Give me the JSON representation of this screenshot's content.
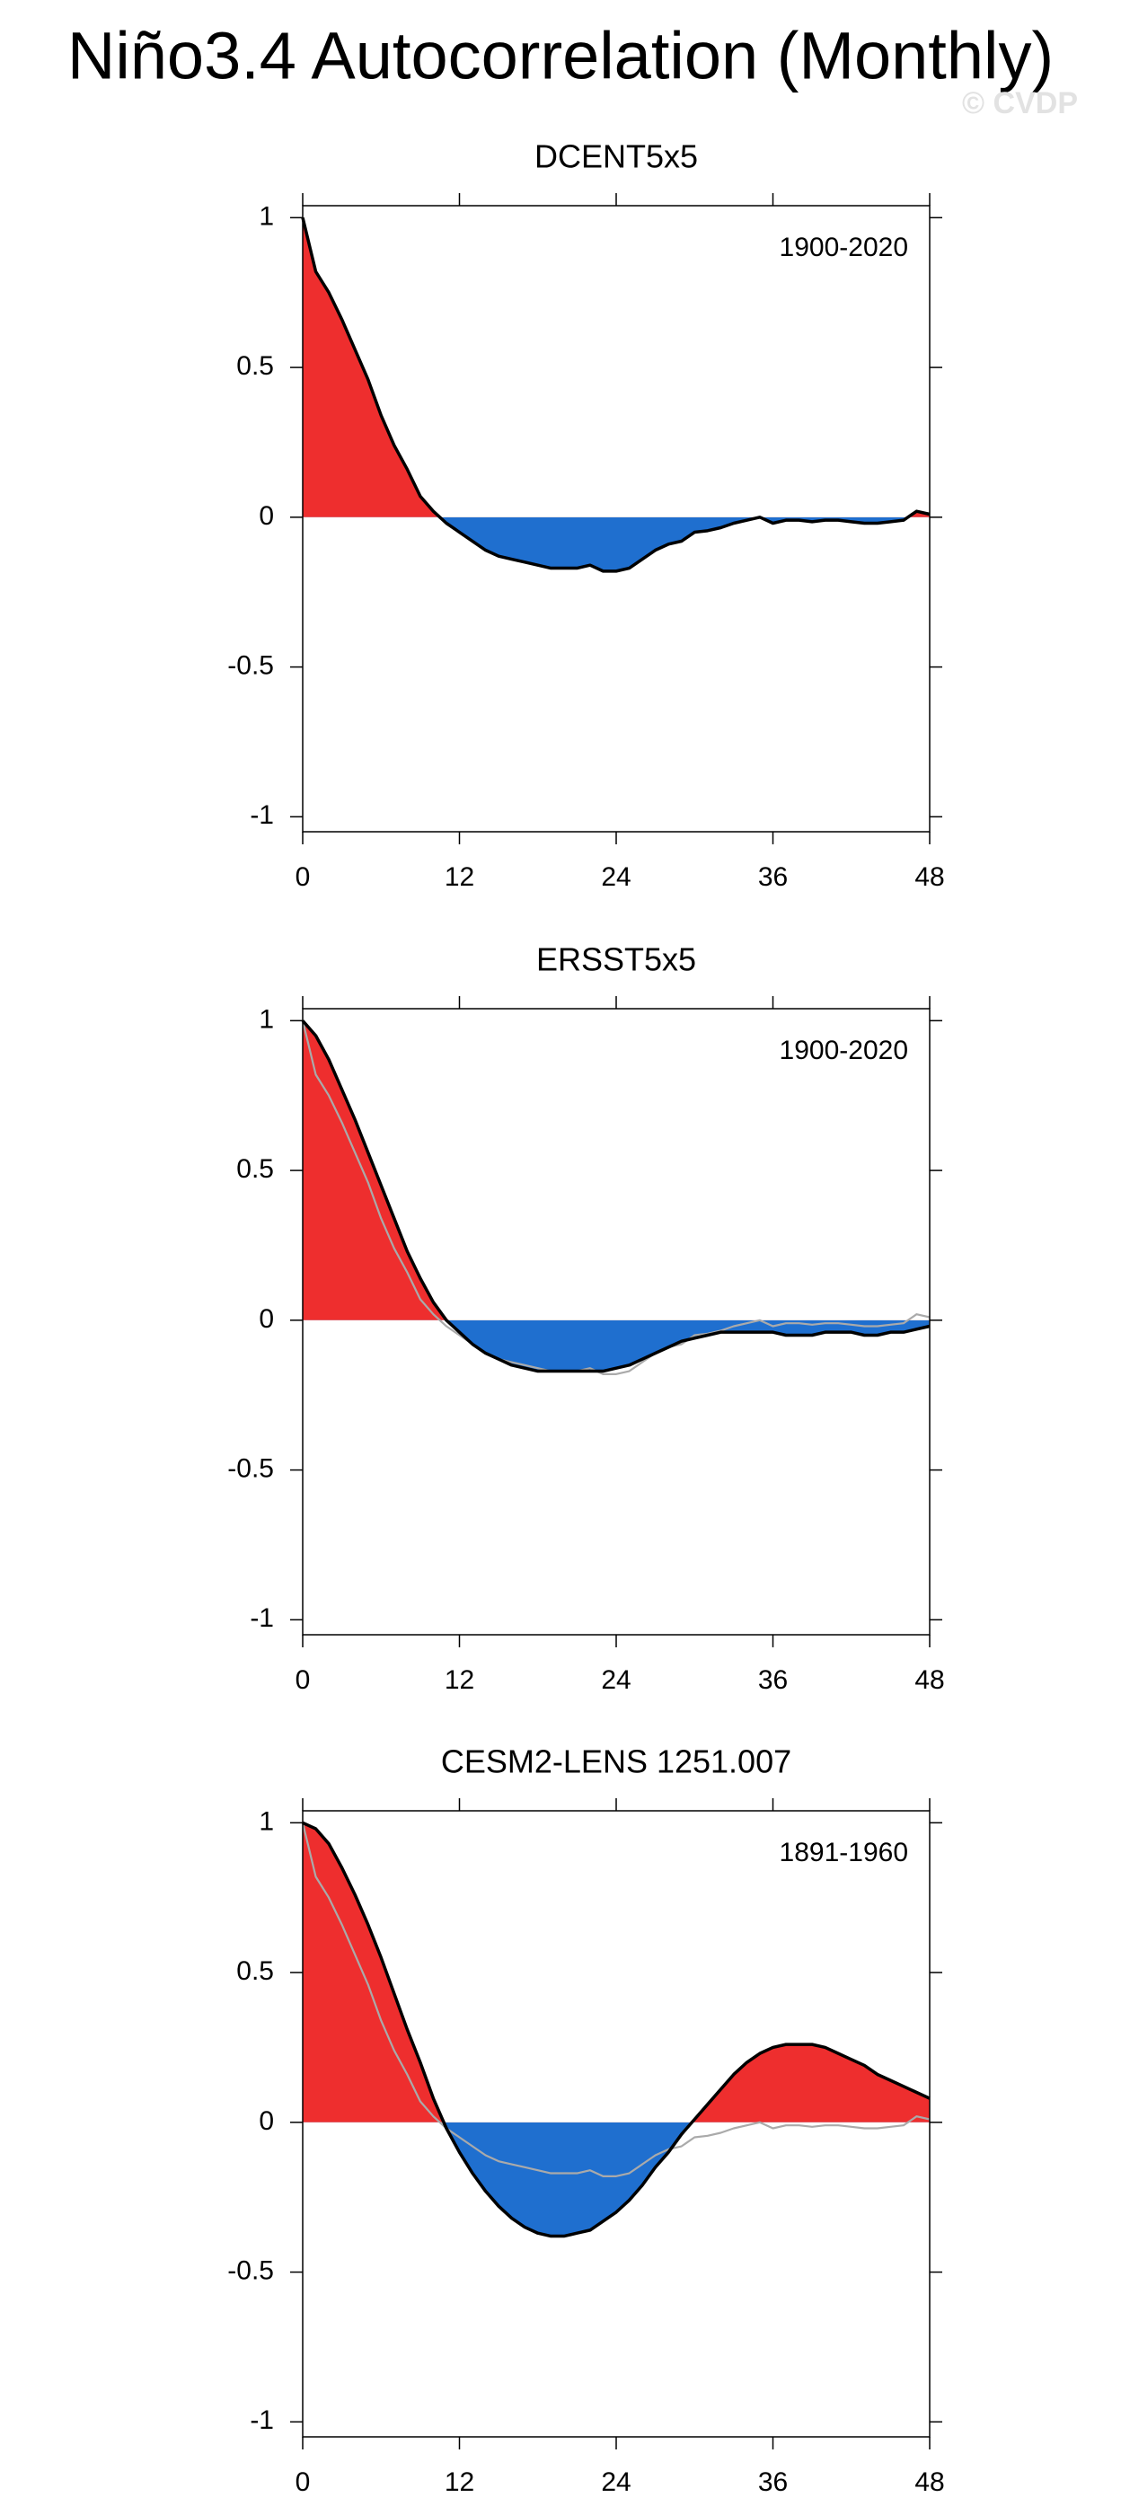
{
  "title": "Niño3.4 Autocorrelation (Monthly)",
  "watermark": "© CVDP",
  "chart_data": [
    {
      "type": "area",
      "title": "DCENT5x5",
      "annotation": "1900-2020",
      "x": [
        0,
        1,
        2,
        3,
        4,
        5,
        6,
        7,
        8,
        9,
        10,
        11,
        12,
        13,
        14,
        15,
        16,
        17,
        18,
        19,
        20,
        21,
        22,
        23,
        24,
        25,
        26,
        27,
        28,
        29,
        30,
        31,
        32,
        33,
        34,
        35,
        36,
        37,
        38,
        39,
        40,
        41,
        42,
        43,
        44,
        45,
        46,
        47,
        48
      ],
      "xlim": [
        0,
        48
      ],
      "xticks": [
        0,
        12,
        24,
        36,
        48
      ],
      "ylim": [
        -1.05,
        1.04
      ],
      "yticks": [
        1,
        0.5,
        0,
        -0.5,
        -1
      ],
      "positive_color": "#ee2e2e",
      "negative_color": "#1f6fcf",
      "series": [
        {
          "color": "#000000",
          "fill": true,
          "values": [
            1,
            0.82,
            0.75,
            0.66,
            0.56,
            0.46,
            0.34,
            0.24,
            0.16,
            0.07,
            0.02,
            -0.02,
            -0.05,
            -0.08,
            -0.11,
            -0.13,
            -0.14,
            -0.15,
            -0.16,
            -0.17,
            -0.17,
            -0.17,
            -0.16,
            -0.18,
            -0.18,
            -0.17,
            -0.14,
            -0.11,
            -0.09,
            -0.08,
            -0.05,
            -0.045,
            -0.035,
            -0.02,
            -0.01,
            0,
            -0.02,
            -0.01,
            -0.01,
            -0.015,
            -0.01,
            -0.01,
            -0.015,
            -0.02,
            -0.02,
            -0.015,
            -0.01,
            0.02,
            0.01
          ]
        }
      ]
    },
    {
      "type": "area",
      "title": "ERSST5x5",
      "annotation": "1900-2020",
      "x": [
        0,
        1,
        2,
        3,
        4,
        5,
        6,
        7,
        8,
        9,
        10,
        11,
        12,
        13,
        14,
        15,
        16,
        17,
        18,
        19,
        20,
        21,
        22,
        23,
        24,
        25,
        26,
        27,
        28,
        29,
        30,
        31,
        32,
        33,
        34,
        35,
        36,
        37,
        38,
        39,
        40,
        41,
        42,
        43,
        44,
        45,
        46,
        47,
        48
      ],
      "xlim": [
        0,
        48
      ],
      "xticks": [
        0,
        12,
        24,
        36,
        48
      ],
      "ylim": [
        -1.05,
        1.04
      ],
      "yticks": [
        1,
        0.5,
        0,
        -0.5,
        -1
      ],
      "positive_color": "#ee2e2e",
      "negative_color": "#1f6fcf",
      "series": [
        {
          "color": "#000000",
          "fill": true,
          "values": [
            1,
            0.95,
            0.87,
            0.77,
            0.67,
            0.56,
            0.45,
            0.34,
            0.23,
            0.14,
            0.06,
            0,
            -0.04,
            -0.08,
            -0.11,
            -0.13,
            -0.15,
            -0.16,
            -0.17,
            -0.17,
            -0.17,
            -0.17,
            -0.17,
            -0.17,
            -0.16,
            -0.15,
            -0.13,
            -0.11,
            -0.09,
            -0.07,
            -0.06,
            -0.05,
            -0.04,
            -0.04,
            -0.04,
            -0.04,
            -0.04,
            -0.05,
            -0.05,
            -0.05,
            -0.04,
            -0.04,
            -0.04,
            -0.05,
            -0.05,
            -0.04,
            -0.04,
            -0.03,
            -0.02
          ]
        },
        {
          "color": "#aaaaaa",
          "fill": false,
          "values": [
            1,
            0.82,
            0.75,
            0.66,
            0.56,
            0.46,
            0.34,
            0.24,
            0.16,
            0.07,
            0.02,
            -0.02,
            -0.05,
            -0.08,
            -0.11,
            -0.13,
            -0.14,
            -0.15,
            -0.16,
            -0.17,
            -0.17,
            -0.17,
            -0.16,
            -0.18,
            -0.18,
            -0.17,
            -0.14,
            -0.11,
            -0.09,
            -0.08,
            -0.05,
            -0.045,
            -0.035,
            -0.02,
            -0.01,
            0,
            -0.02,
            -0.01,
            -0.01,
            -0.015,
            -0.01,
            -0.01,
            -0.015,
            -0.02,
            -0.02,
            -0.015,
            -0.01,
            0.02,
            0.01
          ]
        }
      ]
    },
    {
      "type": "area",
      "title": "CESM2-LENS 1251.007",
      "annotation": "1891-1960",
      "x": [
        0,
        1,
        2,
        3,
        4,
        5,
        6,
        7,
        8,
        9,
        10,
        11,
        12,
        13,
        14,
        15,
        16,
        17,
        18,
        19,
        20,
        21,
        22,
        23,
        24,
        25,
        26,
        27,
        28,
        29,
        30,
        31,
        32,
        33,
        34,
        35,
        36,
        37,
        38,
        39,
        40,
        41,
        42,
        43,
        44,
        45,
        46,
        47,
        48
      ],
      "xlim": [
        0,
        48
      ],
      "xticks": [
        0,
        12,
        24,
        36,
        48
      ],
      "ylim": [
        -1.05,
        1.04
      ],
      "yticks": [
        1,
        0.5,
        0,
        -0.5,
        -1
      ],
      "positive_color": "#ee2e2e",
      "negative_color": "#1f6fcf",
      "series": [
        {
          "color": "#000000",
          "fill": true,
          "values": [
            1,
            0.98,
            0.93,
            0.85,
            0.76,
            0.66,
            0.55,
            0.43,
            0.31,
            0.2,
            0.08,
            -0.02,
            -0.1,
            -0.17,
            -0.23,
            -0.28,
            -0.32,
            -0.35,
            -0.37,
            -0.38,
            -0.38,
            -0.37,
            -0.36,
            -0.33,
            -0.3,
            -0.26,
            -0.21,
            -0.15,
            -0.1,
            -0.04,
            0.01,
            0.06,
            0.11,
            0.16,
            0.2,
            0.23,
            0.25,
            0.26,
            0.26,
            0.26,
            0.25,
            0.23,
            0.21,
            0.19,
            0.16,
            0.14,
            0.12,
            0.1,
            0.08
          ]
        },
        {
          "color": "#aaaaaa",
          "fill": false,
          "values": [
            1,
            0.82,
            0.75,
            0.66,
            0.56,
            0.46,
            0.34,
            0.24,
            0.16,
            0.07,
            0.02,
            -0.02,
            -0.05,
            -0.08,
            -0.11,
            -0.13,
            -0.14,
            -0.15,
            -0.16,
            -0.17,
            -0.17,
            -0.17,
            -0.16,
            -0.18,
            -0.18,
            -0.17,
            -0.14,
            -0.11,
            -0.09,
            -0.08,
            -0.05,
            -0.045,
            -0.035,
            -0.02,
            -0.01,
            0,
            -0.02,
            -0.01,
            -0.01,
            -0.015,
            -0.01,
            -0.01,
            -0.015,
            -0.02,
            -0.02,
            -0.015,
            -0.01,
            0.02,
            0.01
          ]
        }
      ]
    }
  ]
}
